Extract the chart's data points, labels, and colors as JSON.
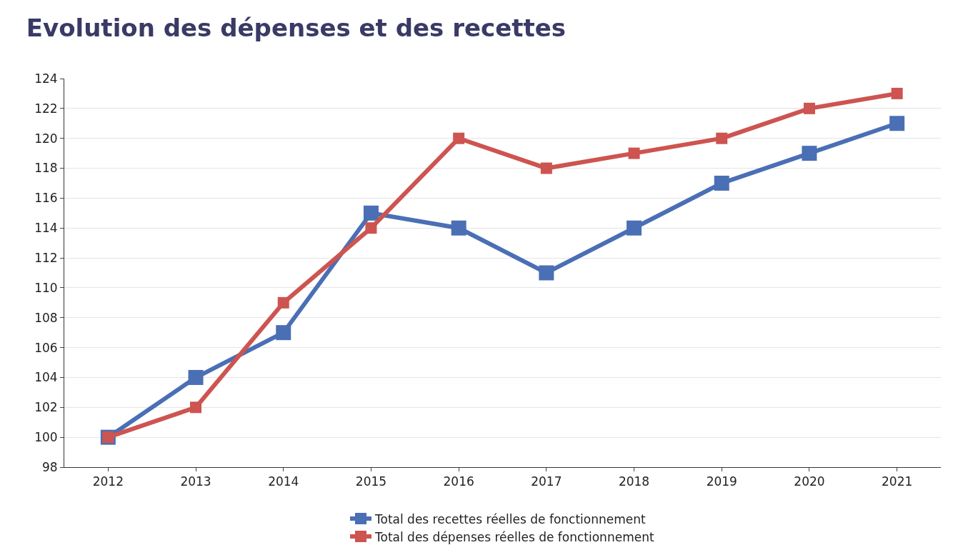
{
  "chart_data": {
    "type": "line",
    "title": "Evolution des dépenses et des recettes",
    "categories": [
      "2012",
      "2013",
      "2014",
      "2015",
      "2016",
      "2017",
      "2018",
      "2019",
      "2020",
      "2021"
    ],
    "series": [
      {
        "name": "Total des recettes réelles de fonctionnement",
        "color": "#4a6fb5",
        "values": [
          100,
          104,
          107,
          115,
          114,
          111,
          114,
          117,
          119,
          121
        ]
      },
      {
        "name": "Total des dépenses réelles de fonctionnement",
        "color": "#cd5450",
        "values": [
          100,
          102,
          109,
          114,
          120,
          118,
          119,
          120,
          122,
          123
        ]
      }
    ],
    "ylim": [
      98,
      124
    ],
    "yticks": [
      98,
      100,
      102,
      104,
      106,
      108,
      110,
      112,
      114,
      116,
      118,
      120,
      122,
      124
    ],
    "grid": "y",
    "legend": "bottom",
    "marker": "square",
    "line_style": "solid"
  }
}
